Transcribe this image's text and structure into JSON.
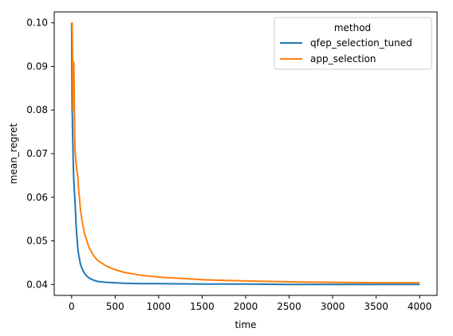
{
  "chart_data": {
    "type": "line",
    "xlabel": "time",
    "ylabel": "mean_regret",
    "xlim": [
      -200,
      4200
    ],
    "ylim": [
      0.0375,
      0.1025
    ],
    "xticks": [
      0,
      500,
      1000,
      1500,
      2000,
      2500,
      3000,
      3500,
      4000
    ],
    "yticks": [
      0.04,
      0.05,
      0.06,
      0.07,
      0.08,
      0.09,
      0.1
    ],
    "ytick_labels": [
      "0.04",
      "0.05",
      "0.06",
      "0.07",
      "0.08",
      "0.09",
      "0.10"
    ],
    "grid": false,
    "legend": {
      "title": "method",
      "position": "top-right"
    },
    "series": [
      {
        "name": "qfep_selection_tuned",
        "color": "#1f77b4",
        "x": [
          0,
          5,
          8,
          10,
          15,
          20,
          25,
          30,
          40,
          50,
          60,
          70,
          80,
          100,
          120,
          150,
          180,
          200,
          250,
          300,
          400,
          500,
          600,
          800,
          1000,
          1500,
          2000,
          2500,
          3000,
          3500,
          4000
        ],
        "y": [
          0.1,
          0.08,
          0.079,
          0.076,
          0.071,
          0.067,
          0.064,
          0.062,
          0.0585,
          0.054,
          0.051,
          0.0485,
          0.047,
          0.0448,
          0.0436,
          0.0425,
          0.0418,
          0.0415,
          0.041,
          0.0407,
          0.0405,
          0.0404,
          0.0403,
          0.0402,
          0.0402,
          0.0401,
          0.0401,
          0.04,
          0.04,
          0.04,
          0.04
        ]
      },
      {
        "name": "app_selection",
        "color": "#ff7f0e",
        "x": [
          0,
          5,
          10,
          15,
          20,
          25,
          30,
          35,
          40,
          50,
          60,
          70,
          80,
          90,
          100,
          120,
          150,
          180,
          200,
          250,
          300,
          400,
          500,
          600,
          800,
          1000,
          1500,
          2000,
          2500,
          3000,
          3500,
          4000
        ],
        "y": [
          0.1,
          0.1,
          0.094,
          0.08,
          0.082,
          0.091,
          0.084,
          0.075,
          0.0705,
          0.068,
          0.066,
          0.065,
          0.062,
          0.06,
          0.0575,
          0.0545,
          0.0515,
          0.0497,
          0.0485,
          0.0467,
          0.0455,
          0.0442,
          0.0434,
          0.0428,
          0.0421,
          0.0417,
          0.0411,
          0.0408,
          0.0406,
          0.0405,
          0.0404,
          0.0404
        ]
      }
    ]
  }
}
